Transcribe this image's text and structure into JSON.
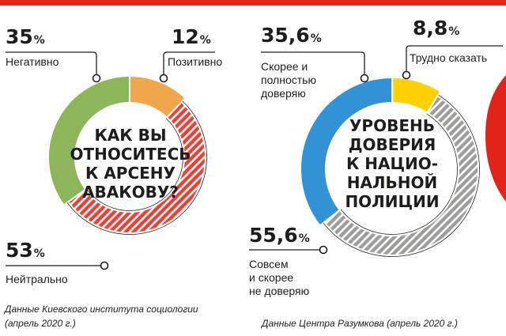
{
  "colors": {
    "top_band": "#e2231a",
    "negative": "#8db65a",
    "positive": "#f0a64b",
    "neutral": "#ee4035",
    "hatch_light": "#ffffff",
    "trust": "#3391d5",
    "hard_to_say": "#ffd100",
    "distrust": "#9d9d9c",
    "accent_red": "#e2231a"
  },
  "chart_data": [
    {
      "type": "pie",
      "style": "donut",
      "title": "КАК ВЫ ОТНОСИТЕСЬ К АРСЕНУ АВАКОВУ?",
      "title_lines": [
        "КАК ВЫ",
        "ОТНОСИТЕСЬ",
        "К АРСЕНУ",
        "АВАКОВУ?"
      ],
      "categories": [
        "Негативно",
        "Позитивно",
        "Нейтрально"
      ],
      "values": [
        35,
        12,
        53
      ],
      "labels": [
        {
          "value": "35",
          "unit": "%",
          "text_lines": [
            "Негативно"
          ]
        },
        {
          "value": "12",
          "unit": "%",
          "text_lines": [
            "Позитивно"
          ]
        },
        {
          "value": "53",
          "unit": "%",
          "text_lines": [
            "Нейтрально"
          ]
        }
      ],
      "source_lines": [
        "Данные Киевского института социологии",
        "(апрель 2020 г.)"
      ]
    },
    {
      "type": "pie",
      "style": "donut",
      "title": "УРОВЕНЬ ДОВЕРИЯ К НАЦИО- НАЛЬНОЙ ПОЛИЦИИ",
      "title_lines": [
        "УРОВЕНЬ",
        "ДОВЕРИЯ",
        "К НАЦИО-",
        "НАЛЬНОЙ",
        "ПОЛИЦИИ"
      ],
      "categories": [
        "Скорее и полностью доверяю",
        "Трудно сказать",
        "Совсем и скорее не доверяю"
      ],
      "values": [
        35.6,
        8.8,
        55.6
      ],
      "labels": [
        {
          "value": "35,6",
          "unit": "%",
          "text_lines": [
            "Скорее и",
            "полностью",
            "доверяю"
          ]
        },
        {
          "value": "8,8",
          "unit": "%",
          "text_lines": [
            "Трудно сказать"
          ]
        },
        {
          "value": "55,6",
          "unit": "%",
          "text_lines": [
            "Совсем",
            "и скорее",
            "не доверяю"
          ]
        }
      ],
      "source_lines": [
        "Данные Центра Разумкова (апрель 2020 г.)"
      ]
    }
  ]
}
